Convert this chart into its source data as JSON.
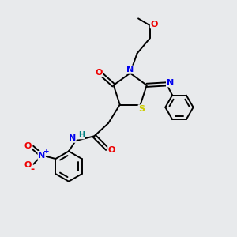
{
  "bg_color": "#e8eaec",
  "atom_colors": {
    "C": "#000000",
    "N": "#0000ee",
    "O": "#ee0000",
    "S": "#cccc00",
    "H": "#008080"
  },
  "bond_color": "#000000",
  "bond_width": 1.4,
  "fig_width": 3.0,
  "fig_height": 3.0,
  "dpi": 100,
  "xlim": [
    0,
    10
  ],
  "ylim": [
    0,
    10
  ]
}
